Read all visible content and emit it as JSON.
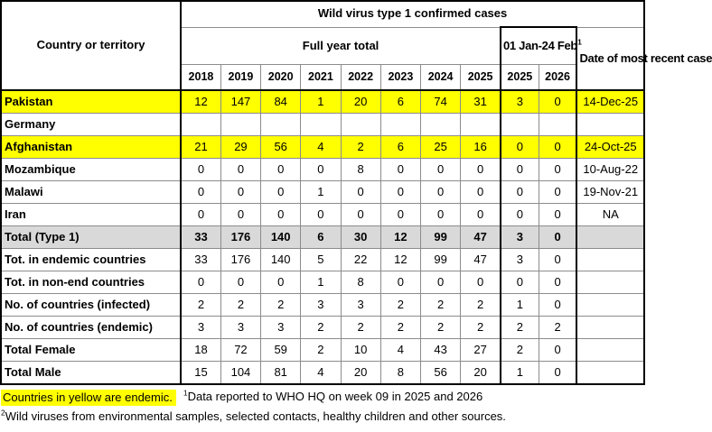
{
  "table": {
    "title": "Wild virus type 1 confirmed cases",
    "country_header": "Country or territory",
    "full_year_header": "Full year total",
    "period_header": {
      "label": "01 Jan-24 Feb",
      "sup": "1"
    },
    "date_header": "Date of most recent case",
    "years": [
      "2018",
      "2019",
      "2020",
      "2021",
      "2022",
      "2023",
      "2024",
      "2025"
    ],
    "period_years": [
      "2025",
      "2026"
    ],
    "rows": [
      {
        "label": "Pakistan",
        "style": "endemic",
        "values": [
          "12",
          "147",
          "84",
          "1",
          "20",
          "6",
          "74",
          "31",
          "3",
          "0"
        ],
        "date": "14-Dec-25",
        "date_borderless": false
      },
      {
        "label": "Germany",
        "style": "plain",
        "values": [
          "",
          "",
          "",
          "",
          "",
          "",
          "",
          "",
          "",
          ""
        ],
        "date": "",
        "date_borderless": false
      },
      {
        "label": "Afghanistan",
        "style": "endemic",
        "values": [
          "21",
          "29",
          "56",
          "4",
          "2",
          "6",
          "25",
          "16",
          "0",
          "0"
        ],
        "date": "24-Oct-25",
        "date_borderless": false
      },
      {
        "label": "Mozambique",
        "style": "plain",
        "values": [
          "0",
          "0",
          "0",
          "0",
          "8",
          "0",
          "0",
          "0",
          "0",
          "0"
        ],
        "date": "10-Aug-22",
        "date_borderless": false
      },
      {
        "label": "Malawi",
        "style": "plain",
        "values": [
          "0",
          "0",
          "0",
          "1",
          "0",
          "0",
          "0",
          "0",
          "0",
          "0"
        ],
        "date": "19-Nov-21",
        "date_borderless": false
      },
      {
        "label": "Iran",
        "style": "plain",
        "values": [
          "0",
          "0",
          "0",
          "0",
          "0",
          "0",
          "0",
          "0",
          "0",
          "0"
        ],
        "date": "NA",
        "date_borderless": false
      },
      {
        "label": "Total (Type 1)",
        "style": "total",
        "values": [
          "33",
          "176",
          "140",
          "6",
          "30",
          "12",
          "99",
          "47",
          "3",
          "0"
        ],
        "date": "",
        "date_borderless": false
      },
      {
        "label": "Tot. in endemic countries",
        "style": "plain",
        "values": [
          "33",
          "176",
          "140",
          "5",
          "22",
          "12",
          "99",
          "47",
          "3",
          "0"
        ],
        "date": "",
        "date_borderless": true
      },
      {
        "label": "Tot. in non-end countries",
        "style": "plain",
        "values": [
          "0",
          "0",
          "0",
          "1",
          "8",
          "0",
          "0",
          "0",
          "0",
          "0"
        ],
        "date": "",
        "date_borderless": true
      },
      {
        "label": "No. of countries (infected)",
        "style": "plain",
        "values": [
          "2",
          "2",
          "2",
          "3",
          "3",
          "2",
          "2",
          "2",
          "1",
          "0"
        ],
        "date": "",
        "date_borderless": true
      },
      {
        "label": "No. of countries (endemic)",
        "style": "plain",
        "values": [
          "3",
          "3",
          "3",
          "2",
          "2",
          "2",
          "2",
          "2",
          "2",
          "2"
        ],
        "date": "",
        "date_borderless": true
      },
      {
        "label": "Total Female",
        "style": "plain",
        "values": [
          "18",
          "72",
          "59",
          "2",
          "10",
          "4",
          "43",
          "27",
          "2",
          "0"
        ],
        "date": "",
        "date_borderless": true
      },
      {
        "label": "Total Male",
        "style": "plain",
        "values": [
          "15",
          "104",
          "81",
          "4",
          "20",
          "8",
          "56",
          "20",
          "1",
          "0"
        ],
        "date": "",
        "date_borderless": true
      }
    ]
  },
  "footer": {
    "legend": "Countries in yellow are endemic.",
    "note1": {
      "sup": "1",
      "text": "Data reported to WHO HQ on week 09 in 2025 and  2026"
    },
    "note2": {
      "sup": "2",
      "text": "Wild viruses from environmental samples, selected contacts, healthy children and other sources."
    }
  },
  "colors": {
    "header_bg": "#F8CBAD",
    "endemic_bg": "#FFFF00",
    "total_bg": "#D9D9D9",
    "gridline": "#8C8C8C",
    "border": "#000000"
  }
}
